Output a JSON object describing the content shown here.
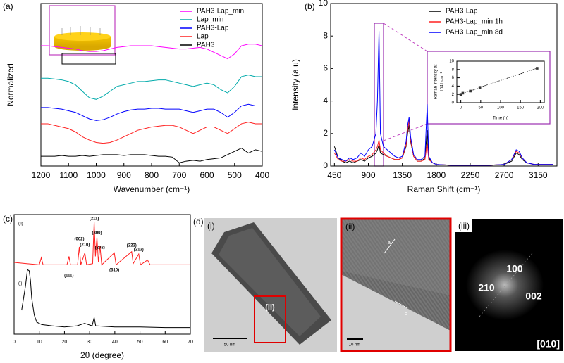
{
  "chart_data": [
    {
      "type": "line",
      "panel_label": "(a)",
      "x_label": "Wavenumber (cm⁻¹)",
      "y_label": "Normalized",
      "xlim": [
        1200,
        400
      ],
      "xticks": [
        1200,
        1100,
        1000,
        900,
        800,
        700,
        600,
        500,
        400
      ],
      "ylim": [
        0,
        10
      ],
      "x": [
        1200,
        1175,
        1150,
        1125,
        1100,
        1075,
        1050,
        1025,
        1000,
        975,
        950,
        925,
        900,
        875,
        850,
        825,
        800,
        775,
        750,
        725,
        700,
        675,
        650,
        625,
        600,
        575,
        550,
        525,
        500,
        475,
        450,
        425,
        400
      ],
      "series": [
        {
          "name": "PAH3-Lap_min",
          "color": "#ff00ff",
          "values": [
            7.4,
            7.4,
            7.35,
            7.3,
            7.25,
            7.2,
            7.1,
            7.05,
            7.05,
            7.1,
            7.2,
            7.3,
            7.35,
            7.4,
            7.4,
            7.4,
            7.4,
            7.35,
            7.3,
            7.25,
            7.2,
            7.2,
            7.25,
            7.3,
            7.2,
            7.0,
            6.8,
            6.6,
            6.9,
            7.4,
            7.5,
            7.5,
            7.4
          ]
        },
        {
          "name": "Lap_min",
          "color": "#00aaaa",
          "values": [
            5.4,
            5.4,
            5.35,
            5.3,
            5.2,
            5.0,
            4.6,
            4.2,
            4.1,
            4.3,
            4.6,
            4.9,
            5.0,
            5.1,
            5.2,
            5.2,
            5.25,
            5.3,
            5.3,
            5.2,
            5.1,
            5.0,
            4.9,
            5.0,
            5.1,
            5.0,
            4.7,
            4.5,
            4.9,
            5.5,
            5.6,
            5.5,
            5.5
          ]
        },
        {
          "name": "PAH3-Lap",
          "color": "#0000ff",
          "values": [
            3.6,
            3.6,
            3.55,
            3.5,
            3.4,
            3.3,
            3.1,
            2.9,
            2.8,
            2.85,
            3.0,
            3.2,
            3.35,
            3.45,
            3.5,
            3.5,
            3.55,
            3.55,
            3.5,
            3.5,
            3.5,
            3.4,
            3.3,
            3.4,
            3.5,
            3.5,
            3.3,
            3.0,
            3.3,
            3.7,
            3.8,
            3.7,
            3.7
          ]
        },
        {
          "name": "Lap",
          "color": "#ff2020",
          "values": [
            2.6,
            2.6,
            2.5,
            2.4,
            2.3,
            2.1,
            1.8,
            1.6,
            1.45,
            1.4,
            1.45,
            1.6,
            1.8,
            2.0,
            2.2,
            2.3,
            2.4,
            2.45,
            2.5,
            2.5,
            2.4,
            2.2,
            2.0,
            2.2,
            2.4,
            2.4,
            2.2,
            2.0,
            2.3,
            2.6,
            2.7,
            2.6,
            2.6
          ]
        },
        {
          "name": "PAH3",
          "color": "#000000",
          "values": [
            0.6,
            0.6,
            0.6,
            0.65,
            0.6,
            0.6,
            0.65,
            0.6,
            0.65,
            0.7,
            0.7,
            0.7,
            0.65,
            0.7,
            0.7,
            0.7,
            0.65,
            0.6,
            0.6,
            0.55,
            0.2,
            0.3,
            0.35,
            0.3,
            0.4,
            0.45,
            0.5,
            0.7,
            0.9,
            1.1,
            0.8,
            1.0,
            0.9
          ]
        }
      ]
    },
    {
      "type": "line",
      "panel_label": "(b)",
      "x_label": "Raman Shift (cm⁻¹)",
      "y_label": "Intensity (a.u)",
      "xlim": [
        400,
        3400
      ],
      "xticks": [
        450,
        900,
        1350,
        1800,
        2250,
        2700,
        3150
      ],
      "ylim": [
        0,
        10
      ],
      "yticks": [
        0,
        2,
        4,
        6,
        8,
        10
      ],
      "x": [
        450,
        500,
        550,
        600,
        650,
        700,
        750,
        800,
        850,
        900,
        950,
        1000,
        1020,
        1041,
        1060,
        1100,
        1150,
        1200,
        1250,
        1300,
        1350,
        1400,
        1420,
        1440,
        1460,
        1500,
        1550,
        1600,
        1650,
        1680,
        1700,
        1750,
        1800,
        2000,
        2250,
        2500,
        2700,
        2800,
        2860,
        2900,
        2940,
        3000,
        3100,
        3200,
        3350
      ],
      "series": [
        {
          "name": "PAH3-Lap",
          "color": "#000000",
          "values": [
            1.2,
            0.5,
            0.3,
            0.2,
            0.3,
            0.2,
            0.3,
            0.4,
            0.3,
            0.5,
            0.6,
            0.8,
            1.0,
            1.3,
            0.8,
            0.7,
            0.6,
            0.5,
            0.4,
            0.4,
            0.5,
            1.2,
            2.0,
            2.5,
            1.5,
            0.6,
            0.3,
            0.3,
            0.5,
            2.2,
            0.5,
            0.2,
            0.1,
            0.05,
            0.05,
            0.05,
            0.1,
            0.3,
            0.8,
            0.7,
            0.4,
            0.2,
            0.1,
            0.1,
            0.1
          ]
        },
        {
          "name": "PAH3-Lap_min 1h",
          "color": "#ff2020",
          "values": [
            0.8,
            0.4,
            0.3,
            0.3,
            0.4,
            0.3,
            0.3,
            0.5,
            0.4,
            0.6,
            0.7,
            1.0,
            1.2,
            1.6,
            1.0,
            0.8,
            0.6,
            0.5,
            0.4,
            0.4,
            0.5,
            1.3,
            2.2,
            2.8,
            1.6,
            0.6,
            0.3,
            0.3,
            0.4,
            1.4,
            0.4,
            0.2,
            0.1,
            0.05,
            0.05,
            0.05,
            0.1,
            0.4,
            0.9,
            0.8,
            0.5,
            0.2,
            0.1,
            0.1,
            0.1
          ]
        },
        {
          "name": "PAH3-Lap_min 8d",
          "color": "#0000ff",
          "values": [
            1.0,
            0.5,
            0.4,
            0.3,
            0.5,
            0.4,
            0.5,
            0.8,
            0.6,
            1.0,
            1.2,
            2.0,
            4.0,
            8.3,
            2.0,
            1.2,
            1.0,
            0.8,
            0.6,
            0.5,
            0.6,
            1.5,
            2.5,
            3.0,
            1.8,
            0.7,
            0.4,
            0.4,
            0.6,
            3.8,
            0.6,
            0.2,
            0.1,
            0.05,
            0.05,
            0.05,
            0.1,
            0.4,
            1.0,
            0.9,
            0.5,
            0.2,
            0.1,
            0.1,
            0.1
          ]
        }
      ]
    },
    {
      "type": "scatter",
      "x_label": "Time (h)",
      "y_label": [
        "Raman intensity at",
        "1041 cm⁻¹"
      ],
      "xlim": [
        -10,
        210
      ],
      "xticks": [
        0,
        50,
        100,
        150,
        200
      ],
      "ylim": [
        0,
        10
      ],
      "yticks": [
        0,
        2,
        4,
        6,
        8,
        10
      ],
      "x": [
        0,
        5,
        24,
        48,
        192
      ],
      "series": [
        {
          "color": "#333333",
          "values": [
            2.0,
            2.3,
            2.8,
            3.7,
            8.3
          ]
        }
      ]
    },
    {
      "type": "line",
      "panel_label": "(c)",
      "x_label": "2θ (degree)",
      "xlim": [
        0,
        70
      ],
      "xticks": [
        0,
        10,
        20,
        30,
        40,
        50,
        60,
        70
      ],
      "ylim": [
        0,
        10
      ],
      "series": [
        {
          "name": "(ii)",
          "color": "#ff2020",
          "x": [
            0,
            5,
            10,
            10.8,
            11.5,
            16,
            21,
            21.8,
            22.4,
            25.2,
            25.9,
            26.5,
            28.1,
            28.8,
            31.2,
            31.8,
            32.3,
            32.9,
            33.5,
            34.1,
            34.8,
            39.8,
            40.5,
            46.7,
            47.3,
            49.5,
            50.2,
            53,
            54,
            60,
            70
          ],
          "values": [
            6.0,
            5.9,
            5.8,
            6.4,
            5.8,
            5.8,
            5.8,
            6.5,
            5.8,
            5.8,
            7.3,
            5.8,
            6.8,
            5.8,
            5.9,
            9.4,
            6.5,
            8.1,
            6.0,
            7.4,
            5.8,
            6.8,
            5.8,
            6.9,
            5.9,
            6.7,
            5.8,
            6.2,
            5.8,
            5.8,
            5.8
          ]
        },
        {
          "name": "(i)",
          "color": "#000000",
          "x": [
            3,
            4.5,
            5.3,
            6,
            6.5,
            7,
            8,
            9,
            11,
            15,
            20,
            25,
            28,
            31,
            31.8,
            32.4,
            40,
            50,
            60,
            70
          ],
          "values": [
            2.0,
            4.0,
            5.4,
            5.3,
            4.5,
            3.0,
            1.6,
            1.0,
            0.8,
            0.7,
            0.6,
            0.7,
            0.9,
            0.7,
            1.4,
            0.7,
            0.6,
            0.6,
            0.55,
            0.55
          ]
        }
      ],
      "peak_labels": [
        {
          "label": "(111)",
          "x": 21.8
        },
        {
          "label": "(002)",
          "x": 25.9
        },
        {
          "label": "(210)",
          "x": 28.1
        },
        {
          "label": "(211)",
          "x": 31.8
        },
        {
          "label": "(300)",
          "x": 32.9
        },
        {
          "label": "(202)",
          "x": 34.1
        },
        {
          "label": "(310)",
          "x": 39.8
        },
        {
          "label": "(222)",
          "x": 46.7
        },
        {
          "label": "(213)",
          "x": 49.5
        }
      ]
    }
  ],
  "tem": {
    "panel_label": "(d)",
    "images": [
      {
        "label": "(i)",
        "inset_label": "(ii)",
        "scale_bar": "50 nm"
      },
      {
        "label": "(ii)",
        "scale_bar": "10 nm",
        "directions": [
          "a",
          "c"
        ]
      },
      {
        "label": "(iii)",
        "spots": [
          "100",
          "210",
          "002"
        ],
        "zone_axis": "[010]"
      }
    ]
  }
}
